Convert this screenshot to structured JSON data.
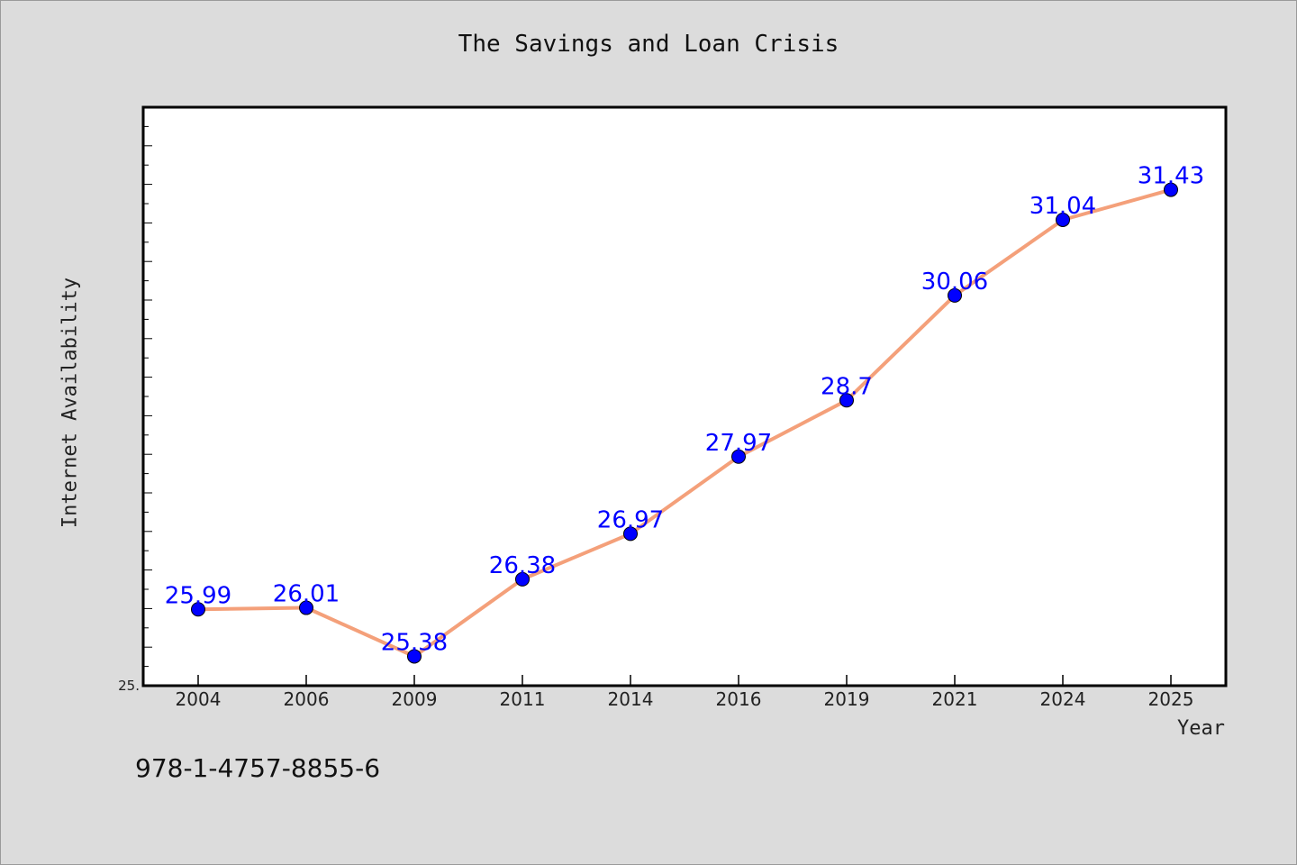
{
  "chart_data": {
    "type": "line",
    "title": "The Savings and Loan Crisis",
    "xlabel": "Year",
    "ylabel": "Internet Availability",
    "categories": [
      "2004",
      "2006",
      "2009",
      "2011",
      "2014",
      "2016",
      "2019",
      "2021",
      "2024",
      "2025"
    ],
    "series": [
      {
        "values": [
          25.99,
          26.01,
          25.38,
          26.38,
          26.97,
          27.97,
          28.7,
          30.06,
          31.04,
          31.43
        ],
        "data_labels": [
          "25.99",
          "26.01",
          "25.38",
          "26.38",
          "26.97",
          "27.97",
          "28.7",
          "30.06",
          "31.04",
          "31.43"
        ]
      }
    ],
    "y_tick_label": "25.",
    "ylim": [
      25.0,
      32.5
    ],
    "grid": false,
    "legend": "none",
    "colors": {
      "line": "#f4a07a",
      "marker": "#0000ff",
      "label": "#0000ff"
    }
  },
  "footer": {
    "isbn": "978-1-4757-8855-6"
  }
}
